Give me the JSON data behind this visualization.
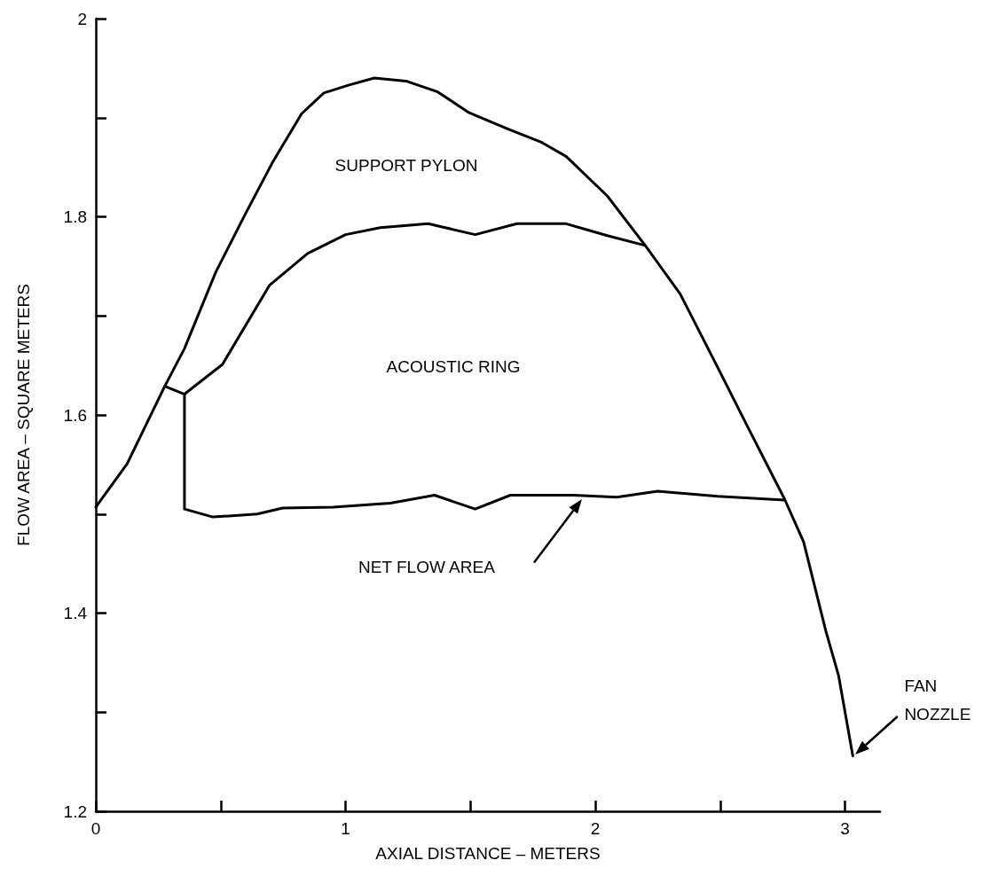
{
  "chart_data": {
    "type": "line",
    "xlabel": "AXIAL DISTANCE – METERS",
    "ylabel": "FLOW AREA – SQUARE METERS",
    "xlim": [
      0,
      3.14
    ],
    "xticks": [
      0,
      {
        "value": 0.5,
        "label": null
      },
      1,
      {
        "value": 1.5,
        "label": null
      },
      2,
      {
        "value": 2.5,
        "label": null
      },
      3
    ],
    "ylim": [
      1.2,
      2.0
    ],
    "yticks": [
      1.2,
      {
        "value": 1.3,
        "label": null
      },
      1.4,
      {
        "value": 1.5,
        "label": null
      },
      1.6,
      {
        "value": 1.7,
        "label": null
      },
      1.8,
      {
        "value": 1.9,
        "label": null
      },
      2.0
    ],
    "grid": false,
    "line_style": "solid",
    "series": [
      {
        "color": "#000000",
        "x": [
          0,
          0.126,
          0.276,
          0.355,
          0.48,
          0.595,
          0.71,
          0.824,
          0.913,
          1.014,
          1.115,
          1.242,
          1.369,
          1.495,
          1.647,
          1.786,
          1.883,
          2.048,
          2.2,
          2.34,
          2.49,
          2.606,
          2.758,
          2.834,
          2.923,
          2.974,
          3.031
        ],
        "values": [
          1.507,
          1.551,
          1.629,
          1.667,
          1.744,
          1.801,
          1.856,
          1.904,
          1.925,
          1.933,
          1.94,
          1.937,
          1.926,
          1.905,
          1.889,
          1.875,
          1.861,
          1.821,
          1.771,
          1.722,
          1.648,
          1.59,
          1.515,
          1.472,
          1.382,
          1.337,
          1.256
        ]
      },
      {
        "color": "#000000",
        "x": [
          0.276,
          0.355,
          0.507,
          0.696,
          0.848,
          1.0,
          1.139,
          1.331,
          1.519,
          1.686,
          1.883,
          2.048,
          2.2
        ],
        "values": [
          1.629,
          1.621,
          1.651,
          1.731,
          1.763,
          1.782,
          1.789,
          1.793,
          1.782,
          1.793,
          1.793,
          1.781,
          1.771
        ]
      },
      {
        "color": "#000000",
        "x": [
          0.355,
          0.355,
          0.469,
          0.646,
          0.748,
          0.95,
          1.179,
          1.356,
          1.519,
          1.66,
          1.913,
          2.086,
          2.25,
          2.49,
          2.758
        ],
        "values": [
          1.621,
          1.505,
          1.497,
          1.5,
          1.506,
          1.507,
          1.511,
          1.519,
          1.505,
          1.519,
          1.519,
          1.517,
          1.523,
          1.518,
          1.514
        ]
      }
    ],
    "annotations": [
      "SUPPORT PYLON",
      "ACOUSTIC RING",
      "NET FLOW AREA",
      "FAN NOZZLE"
    ]
  }
}
